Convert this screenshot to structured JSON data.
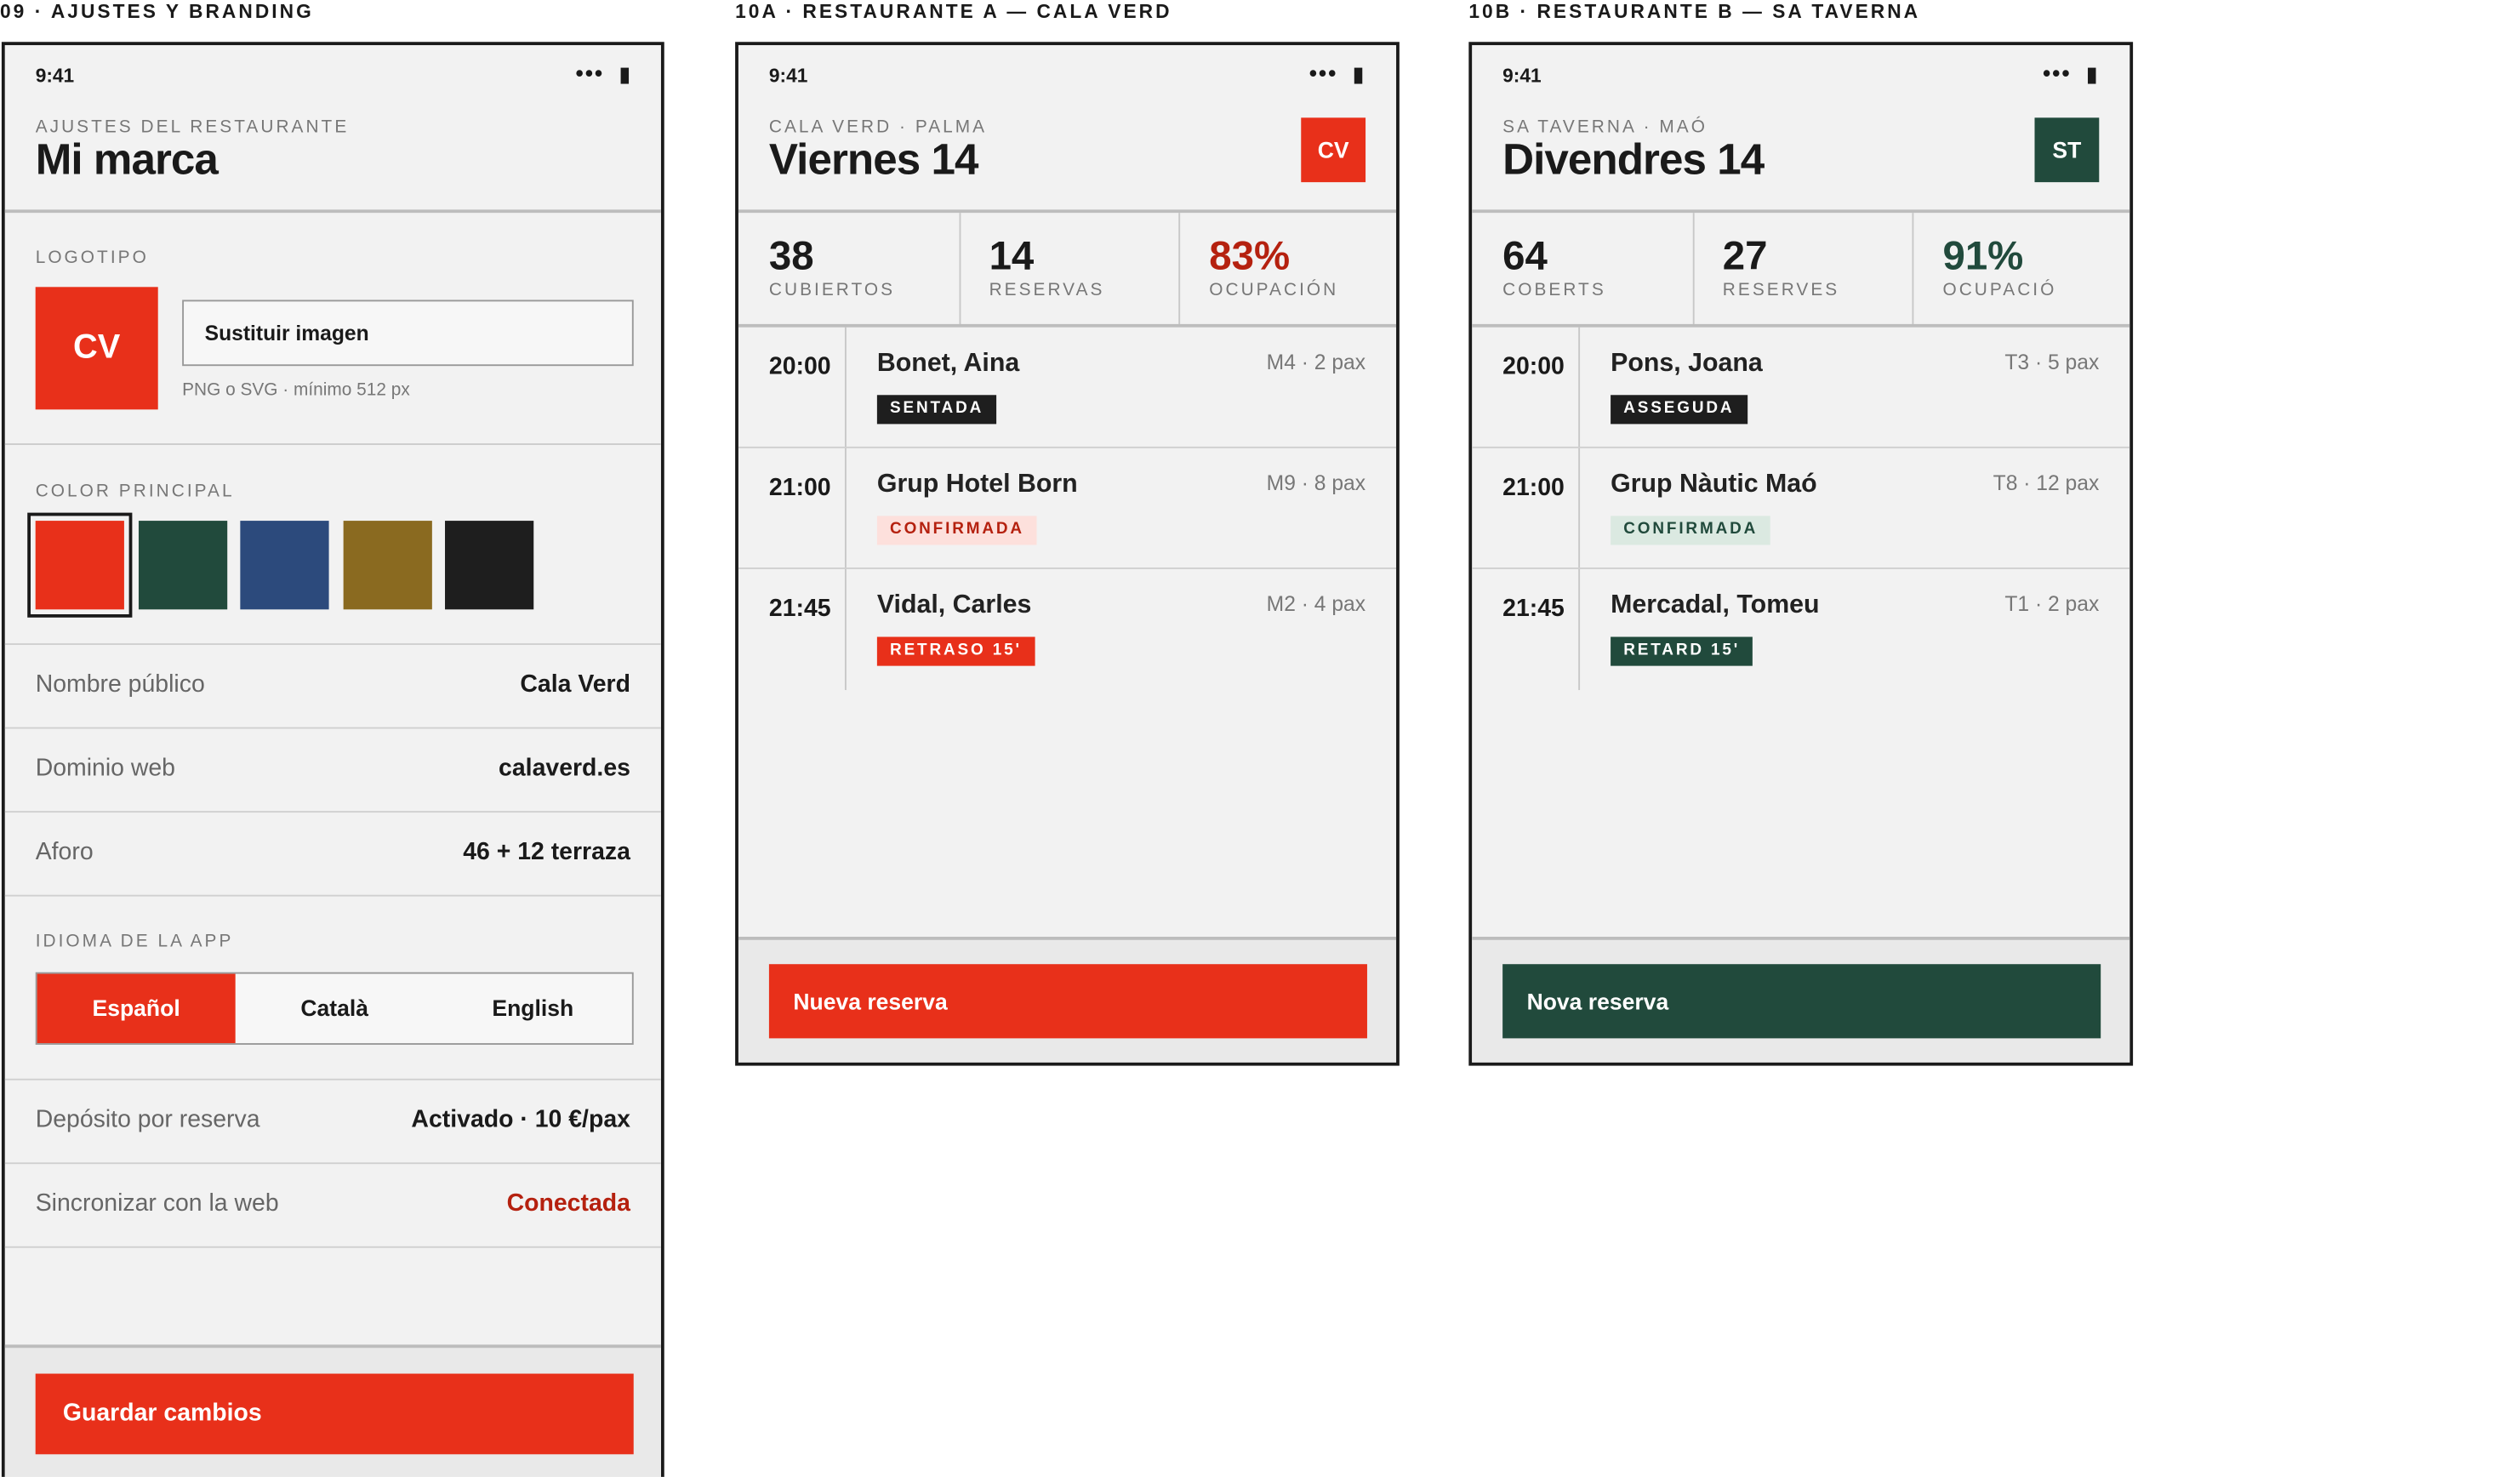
{
  "settings": {
    "label": "09 · AJUSTES Y BRANDING",
    "time": "9:41",
    "kicker": "AJUSTES DEL RESTAURANTE",
    "title": "Mi marca",
    "logo_label": "LOGOTIPO",
    "logo": "CV",
    "replace_button": "Sustituir imagen",
    "logo_hint": "PNG o SVG · mínimo 512 px",
    "color_label": "COLOR PRINCIPAL",
    "swatches": [
      "#e8301a",
      "#214a3c",
      "#2c4a7c",
      "#8a6a20",
      "#1e1e1e"
    ],
    "rows_top": [
      {
        "label": "Nombre público",
        "value": "Cala Verd"
      },
      {
        "label": "Dominio web",
        "value": "calaverd.es"
      },
      {
        "label": "Aforo",
        "value": "46 + 12 terraza"
      }
    ],
    "language_label": "IDIOMA DE LA APP",
    "languages": [
      "Español",
      "Català",
      "English"
    ],
    "rows_bottom": [
      {
        "label": "Depósito por reserva",
        "value": "Activado · 10 €/pax"
      },
      {
        "label": "Sincronizar con la web",
        "value": "Conectada"
      }
    ],
    "save_button": "Guardar cambios"
  },
  "restaurants": [
    {
      "label": "10A · RESTAURANTE A — CALA VERD",
      "time": "9:41",
      "kicker": "CALA VERD · PALMA",
      "title": "Viernes 14",
      "badge": "CV",
      "accent": "#e8301a",
      "accent_text": "#b5210f",
      "accent_soft": "#fde0dc",
      "stats": [
        {
          "value": "38",
          "label": "CUBIERTOS"
        },
        {
          "value": "14",
          "label": "RESERVAS"
        },
        {
          "value": "83%",
          "label": "OCUPACIÓN"
        }
      ],
      "bookings": [
        {
          "time": "20:00",
          "name": "Bonet, Aina",
          "meta": "M4 · 2 pax",
          "status": "SENTADA"
        },
        {
          "time": "21:00",
          "name": "Grup Hotel Born",
          "meta": "M9 · 8 pax",
          "status": "CONFIRMADA"
        },
        {
          "time": "21:45",
          "name": "Vidal, Carles",
          "meta": "M2 · 4 pax",
          "status": "RETRASO 15'"
        }
      ],
      "button": "Nueva reserva"
    },
    {
      "label": "10B · RESTAURANTE B — SA TAVERNA",
      "time": "9:41",
      "kicker": "SA TAVERNA · MAÓ",
      "title": "Divendres 14",
      "badge": "ST",
      "accent": "#214a3c",
      "accent_text": "#214a3c",
      "accent_soft": "#dbe9e1",
      "stats": [
        {
          "value": "64",
          "label": "COBERTS"
        },
        {
          "value": "27",
          "label": "RESERVES"
        },
        {
          "value": "91%",
          "label": "OCUPACIÓ"
        }
      ],
      "bookings": [
        {
          "time": "20:00",
          "name": "Pons, Joana",
          "meta": "T3 · 5 pax",
          "status": "ASSEGUDA"
        },
        {
          "time": "21:00",
          "name": "Grup Nàutic Maó",
          "meta": "T8 · 12 pax",
          "status": "CONFIRMADA"
        },
        {
          "time": "21:45",
          "name": "Mercadal, Tomeu",
          "meta": "T1 · 2 pax",
          "status": "RETARD 15'"
        }
      ],
      "button": "Nova reserva"
    }
  ]
}
